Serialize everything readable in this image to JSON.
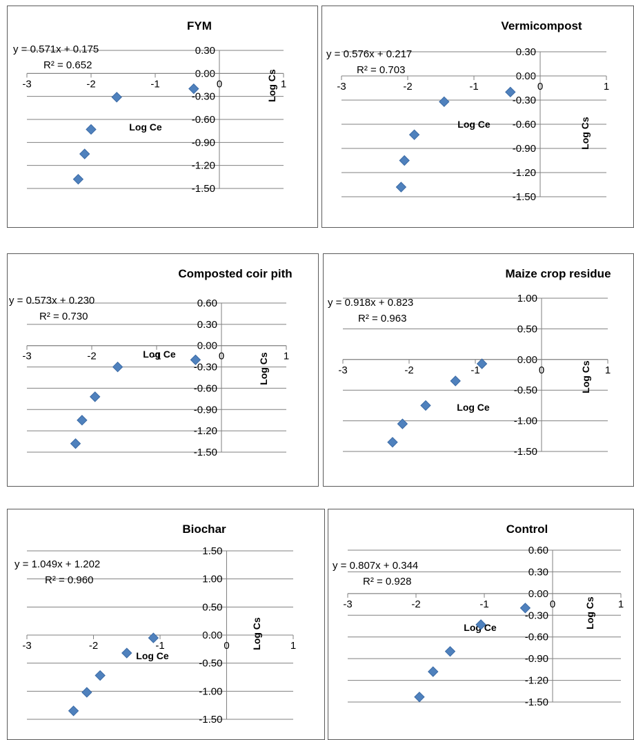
{
  "chart_data": [
    {
      "type": "scatter",
      "title": "FYM",
      "xlabel": "Log Ce",
      "ylabel": "Log Cs",
      "xlim": [
        -3,
        1
      ],
      "ylim": [
        -1.5,
        0.3
      ],
      "x_ticks": [
        -3,
        -2,
        -1,
        0,
        1
      ],
      "y_ticks": [
        0.3,
        0.0,
        -0.3,
        -0.6,
        -0.9,
        -1.2,
        -1.5
      ],
      "y_tick_labels": [
        "0.30",
        "0.00",
        "-0.30",
        "-0.60",
        "-0.90",
        "-1.20",
        "-1.50"
      ],
      "grid": true,
      "equation": "y = 0.571x + 0.175",
      "r2": "R² = 0.652",
      "points": [
        {
          "x": -0.4,
          "y": -0.2
        },
        {
          "x": -1.6,
          "y": -0.31
        },
        {
          "x": -2.0,
          "y": -0.73
        },
        {
          "x": -2.1,
          "y": -1.05
        },
        {
          "x": -2.2,
          "y": -1.38
        }
      ],
      "marker_color": "#4f81bd"
    },
    {
      "type": "scatter",
      "title": "Vermicompost",
      "xlabel": "Log Ce",
      "ylabel": "Log Cs",
      "xlim": [
        -3,
        1
      ],
      "ylim": [
        -1.5,
        0.3
      ],
      "x_ticks": [
        -3,
        -2,
        -1,
        0,
        1
      ],
      "y_ticks": [
        0.3,
        0.0,
        -0.3,
        -0.6,
        -0.9,
        -1.2,
        -1.5
      ],
      "y_tick_labels": [
        "0.30",
        "0.00",
        "-0.30",
        "-0.60",
        "-0.90",
        "-1.20",
        "-1.50"
      ],
      "grid": true,
      "equation": "y = 0.576x + 0.217",
      "r2": "R² = 0.703",
      "points": [
        {
          "x": -0.45,
          "y": -0.2
        },
        {
          "x": -1.45,
          "y": -0.32
        },
        {
          "x": -1.9,
          "y": -0.73
        },
        {
          "x": -2.05,
          "y": -1.05
        },
        {
          "x": -2.1,
          "y": -1.38
        }
      ],
      "marker_color": "#4f81bd"
    },
    {
      "type": "scatter",
      "title": "Composted coir pith",
      "xlabel": "Log Ce",
      "ylabel": "Log Cs",
      "xlim": [
        -3,
        1
      ],
      "ylim": [
        -1.5,
        0.6
      ],
      "x_ticks": [
        -3,
        -2,
        -1,
        0,
        1
      ],
      "y_ticks": [
        0.6,
        0.3,
        0.0,
        -0.3,
        -0.6,
        -0.9,
        -1.2,
        -1.5
      ],
      "y_tick_labels": [
        "0.60",
        "0.30",
        "0.00",
        "-0.30",
        "-0.60",
        "-0.90",
        "-1.20",
        "-1.50"
      ],
      "grid": true,
      "equation": "y = 0.573x + 0.230",
      "r2": "R² = 0.730",
      "points": [
        {
          "x": -0.4,
          "y": -0.2
        },
        {
          "x": -1.6,
          "y": -0.3
        },
        {
          "x": -1.95,
          "y": -0.72
        },
        {
          "x": -2.15,
          "y": -1.05
        },
        {
          "x": -2.25,
          "y": -1.38
        }
      ],
      "marker_color": "#4f81bd"
    },
    {
      "type": "scatter",
      "title": "Maize crop residue",
      "xlabel": "Log Ce",
      "ylabel": "Log Cs",
      "xlim": [
        -3,
        1
      ],
      "ylim": [
        -1.5,
        1.0
      ],
      "x_ticks": [
        -3,
        -2,
        -1,
        0,
        1
      ],
      "y_ticks": [
        1.0,
        0.5,
        0.0,
        -0.5,
        -1.0,
        -1.5
      ],
      "y_tick_labels": [
        "1.00",
        "0.50",
        "0.00",
        "-0.50",
        "-1.00",
        "-1.50"
      ],
      "grid": true,
      "equation": "y = 0.918x + 0.823",
      "r2": "R² = 0.963",
      "points": [
        {
          "x": -0.9,
          "y": -0.07
        },
        {
          "x": -1.3,
          "y": -0.35
        },
        {
          "x": -1.75,
          "y": -0.75
        },
        {
          "x": -2.1,
          "y": -1.05
        },
        {
          "x": -2.25,
          "y": -1.35
        }
      ],
      "marker_color": "#4f81bd"
    },
    {
      "type": "scatter",
      "title": "Biochar",
      "xlabel": "Log Ce",
      "ylabel": "Log Cs",
      "xlim": [
        -3,
        1
      ],
      "ylim": [
        -1.5,
        1.5
      ],
      "x_ticks": [
        -3,
        -2,
        -1,
        0,
        1
      ],
      "y_ticks": [
        1.5,
        1.0,
        0.5,
        0.0,
        -0.5,
        -1.0,
        -1.5
      ],
      "y_tick_labels": [
        "1.50",
        "1.00",
        "0.50",
        "0.00",
        "-0.50",
        "-1.00",
        "-1.50"
      ],
      "grid": true,
      "equation": "y = 1.049x + 1.202",
      "r2": "R² = 0.960",
      "points": [
        {
          "x": -1.1,
          "y": -0.05
        },
        {
          "x": -1.5,
          "y": -0.32
        },
        {
          "x": -1.9,
          "y": -0.72
        },
        {
          "x": -2.1,
          "y": -1.02
        },
        {
          "x": -2.3,
          "y": -1.35
        }
      ],
      "marker_color": "#4f81bd"
    },
    {
      "type": "scatter",
      "title": "Control",
      "xlabel": "Log Ce",
      "ylabel": "Log Cs",
      "xlim": [
        -3,
        1
      ],
      "ylim": [
        -1.5,
        0.6
      ],
      "x_ticks": [
        -3,
        -2,
        -1,
        0,
        1
      ],
      "y_ticks": [
        0.6,
        0.3,
        0.0,
        -0.3,
        -0.6,
        -0.9,
        -1.2,
        -1.5
      ],
      "y_tick_labels": [
        "0.60",
        "0.30",
        "0.00",
        "-0.30",
        "-0.60",
        "-0.90",
        "-1.20",
        "-1.50"
      ],
      "grid": true,
      "equation": "y = 0.807x + 0.344",
      "r2": "R² = 0.928",
      "points": [
        {
          "x": -0.4,
          "y": -0.2
        },
        {
          "x": -1.05,
          "y": -0.43
        },
        {
          "x": -1.5,
          "y": -0.8
        },
        {
          "x": -1.75,
          "y": -1.08
        },
        {
          "x": -1.95,
          "y": -1.43
        }
      ],
      "marker_color": "#4f81bd"
    }
  ]
}
